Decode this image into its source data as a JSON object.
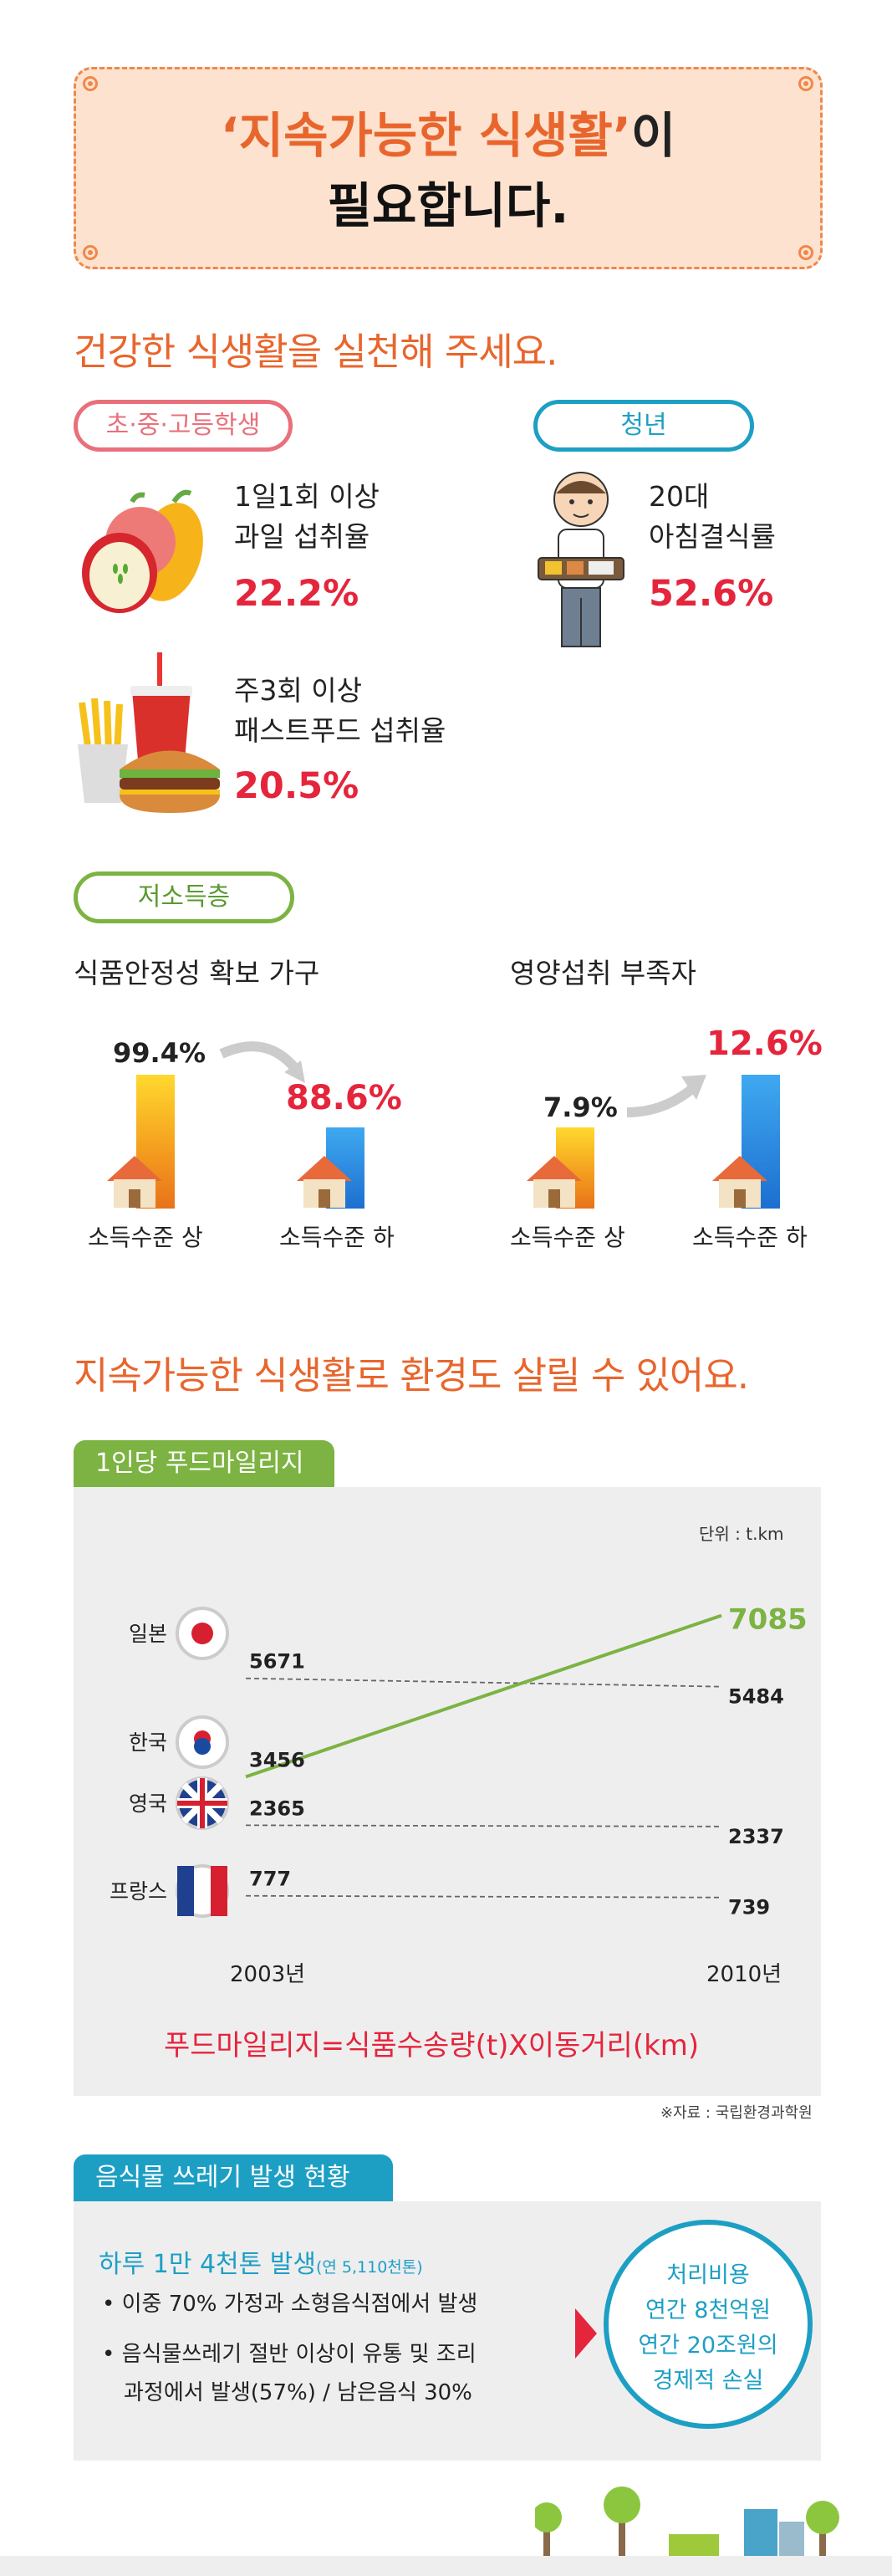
{
  "title": {
    "highlight": "‘지속가능한 식생활’",
    "suffix": "이",
    "line2": "필요합니다."
  },
  "section1": {
    "heading": "건강한 식생활을 실천해 주세요.",
    "students": {
      "pill": "초·중·고등학생",
      "fruit": {
        "line1": "1일1회 이상",
        "line2": "과일 섭취율",
        "value": "22.2%"
      },
      "fastfood": {
        "line1": "주3회 이상",
        "line2": "패스트푸드 섭취율",
        "value": "20.5%"
      }
    },
    "youth": {
      "pill": "청년",
      "line1": "20대",
      "line2": "아침결식률",
      "value": "52.6%"
    },
    "lowincome": {
      "pill": "저소득층",
      "food_security": {
        "title": "식품안정성 확보 가구",
        "high_value": "99.4%",
        "low_value": "88.6%",
        "high_label": "소득수준 상",
        "low_label": "소득수준 하"
      },
      "nutrition": {
        "title": "영양섭취 부족자",
        "high_value": "7.9%",
        "low_value": "12.6%",
        "high_label": "소득수준 상",
        "low_label": "소득수준 하"
      }
    }
  },
  "section2": {
    "heading": "지속가능한 식생활로 환경도 살릴 수 있어요.",
    "foodmiles": {
      "tab": "1인당 푸드마일리지",
      "unit": "단위 : t.km",
      "x_start": "2003년",
      "x_end": "2010년",
      "formula": "푸드마일리지=식품수송량(t)X이동거리(km)",
      "source": "※자료 : 국립환경과학원"
    },
    "waste": {
      "tab": "음식물 쓰레기 발생 현황",
      "headline": "하루 1만 4천톤 발생",
      "headline_note": "(연 5,110천톤)",
      "bullet1": "• 이중 70% 가정과 소형음식점에서 발생",
      "bullet2a": "• 음식물쓰레기 절반 이상이 유통 및 조리",
      "bullet2b": "과정에서 발생(57%) / 남은음식 30%",
      "circle": [
        "처리비용",
        "연간 8천억원",
        "연간 20조원의",
        "경제적 손실"
      ]
    }
  },
  "chart_data": {
    "type": "line",
    "title": "1인당 푸드마일리지",
    "x": [
      "2003년",
      "2010년"
    ],
    "ylabel": "단위 : t.km",
    "series": [
      {
        "name": "일본",
        "values": [
          5671,
          5484
        ]
      },
      {
        "name": "한국",
        "values": [
          3456,
          7085
        ]
      },
      {
        "name": "영국",
        "values": [
          2365,
          2337
        ]
      },
      {
        "name": "프랑스",
        "values": [
          777,
          739
        ]
      }
    ],
    "ylim": [
      0,
      8000
    ]
  },
  "colors": {
    "accent": "#e8662d",
    "red": "#e5253c",
    "green": "#7cb342",
    "blue": "#1d9fc4",
    "pink": "#e8707b"
  }
}
